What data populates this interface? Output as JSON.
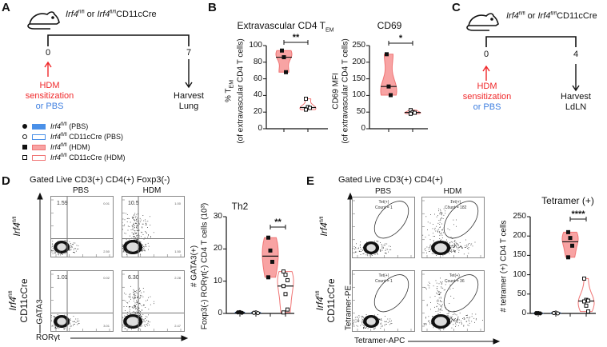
{
  "colors": {
    "hdm_red": "#f0282a",
    "pbs_blue": "#3f7fe0",
    "violin_pink": "#f8a3a3",
    "violin_stroke": "#f07575",
    "blue_fill": "#4a90e8"
  },
  "panelA": {
    "label": "A",
    "strain": {
      "g1": "Irf4",
      "s1": "fl/fl",
      "or": " or ",
      "g2": "Irf4",
      "s2": "fl/fl",
      "rest": "CD11cCre"
    },
    "day_start": "0",
    "day_end": "7",
    "treat1": "HDM",
    "treat2": "sensitization",
    "treat3": "or PBS",
    "harvest1": "Harvest",
    "harvest2": "Lung"
  },
  "panelB": {
    "label": "B"
  },
  "panelC": {
    "label": "C",
    "strain": {
      "g1": "Irf4",
      "s1": "fl/fl",
      "or": " or ",
      "g2": "Irf4",
      "s2": "fl/fl",
      "rest": "CD11cCre"
    },
    "day_start": "0",
    "day_end": "4",
    "treat1": "HDM",
    "treat2": "sensitization",
    "treat3": "or PBS",
    "harvest1": "Harvest",
    "harvest2": "LdLN"
  },
  "legend": [
    {
      "gene": "Irf4",
      "sup": "fl/fl",
      "rest": " (PBS)",
      "marker": "filled-circle",
      "swatch": "blue-filled"
    },
    {
      "gene": "Irf4",
      "sup": "fl/fl",
      "rest": " CD11cCre (PBS)",
      "marker": "open-circle",
      "swatch": "blue-open"
    },
    {
      "gene": "Irf4",
      "sup": "fl/fl",
      "rest": " (HDM)",
      "marker": "filled-square",
      "swatch": "red-filled"
    },
    {
      "gene": "Irf4",
      "sup": "fl/fl",
      "rest": " CD11cCre (HDM)",
      "marker": "open-square",
      "swatch": "red-open"
    }
  ],
  "panelD": {
    "label": "D",
    "title": "Gated Live CD3(+) CD4(+) Foxp3(-)",
    "col_labels": [
      "PBS",
      "HDM"
    ],
    "row1": {
      "gene": "Irf4",
      "sup": "fl/fl"
    },
    "row2": {
      "gene": "Irf4",
      "sup": "fl/fl",
      "rest": "CD11cCre"
    },
    "y_axis": "GATA3",
    "x_axis": "RORγt",
    "plots": [
      {
        "ul": "1.59",
        "ur": "0.01",
        "lr": "2.50",
        "ll": "95.9"
      },
      {
        "ul": "10.5",
        "ur": "1.00",
        "lr": "1.50",
        "ll": "86.9"
      },
      {
        "ul": "1.01",
        "ur": "0.02",
        "lr": "3.01",
        "ll": "95.1"
      },
      {
        "ul": "6.30",
        "ur": "2.28",
        "lr": "2.47",
        "ll": "88.9"
      }
    ]
  },
  "panelE": {
    "label": "E",
    "title": "Gated Live CD3(+) CD4(+)",
    "col_labels": [
      "PBS",
      "HDM"
    ],
    "row1": {
      "gene": "Irf4",
      "sup": "fl/fl"
    },
    "row2": {
      "gene": "Irf4",
      "sup": "fl/fl",
      "rest": "CD11cCre"
    },
    "y_axis": "Tetramer-PE",
    "x_axis": "Tetramer-APC",
    "plots": [
      {
        "gate": "Tet(+)",
        "count": "Count = 1"
      },
      {
        "gate": "Tet(+)",
        "count": "Count = 182"
      },
      {
        "gate": "Tet(+)",
        "count": "Count = 1"
      },
      {
        "gate": "Tet(+)",
        "count": "Count = 36"
      }
    ]
  },
  "chart_data": [
    {
      "id": "tem",
      "type": "violin",
      "title": "Extravascular CD4 T",
      "title_sub": "EM",
      "ylabel_1": "% T",
      "ylabel_1_sub": "EM",
      "ylabel_2": "(of extravascular CD4 T cells)",
      "ylim": [
        0,
        100
      ],
      "yticks": [
        0,
        20,
        40,
        60,
        80,
        100
      ],
      "groups": [
        {
          "name": "Irf4 fl/fl (HDM)",
          "marker": "filled-square",
          "filled": true,
          "values": [
            94,
            86,
            68
          ]
        },
        {
          "name": "Irf4 fl/fl CD11cCre (HDM)",
          "marker": "open-square",
          "filled": false,
          "values": [
            36,
            26,
            25,
            23
          ]
        }
      ],
      "significance": "**"
    },
    {
      "id": "cd69",
      "type": "violin",
      "title": "CD69",
      "title_sub": "",
      "ylabel_1": "CD69 MFI",
      "ylabel_1_sub": "",
      "ylabel_2": "(of extravascular CD4 T cells)",
      "ylim": [
        0,
        250
      ],
      "yticks": [
        0,
        50,
        100,
        150,
        200,
        250
      ],
      "groups": [
        {
          "name": "Irf4 fl/fl (HDM)",
          "marker": "filled-square",
          "filled": true,
          "values": [
            224,
            127,
            101
          ]
        },
        {
          "name": "Irf4 fl/fl CD11cCre (HDM)",
          "marker": "open-square",
          "filled": false,
          "values": [
            56,
            50,
            48,
            45
          ]
        }
      ],
      "significance": "*"
    },
    {
      "id": "th2",
      "type": "violin",
      "title": "Th2",
      "title_sub": "",
      "ylabel_1": "# GATA3(+)",
      "ylabel_1_sub": "",
      "ylabel_2": "Foxp3(-) RORγt(-) CD4 T cells (10³)",
      "ylim": [
        0,
        30
      ],
      "yticks": [
        0,
        10,
        20,
        30
      ],
      "groups": [
        {
          "name": "Irf4 fl/fl (PBS)",
          "marker": "filled-circle",
          "filled": true,
          "color": "blue",
          "values": [
            0.3,
            0.4,
            0.2,
            0.3
          ]
        },
        {
          "name": "Irf4 fl/fl CD11cCre (PBS)",
          "marker": "open-circle",
          "filled": false,
          "color": "blue",
          "values": [
            0.2,
            0.3,
            0.1,
            0.2
          ]
        },
        {
          "name": "Irf4 fl/fl (HDM)",
          "marker": "filled-square",
          "filled": true,
          "values": [
            23.5,
            19.5,
            16,
            11.2
          ]
        },
        {
          "name": "Irf4 fl/fl CD11cCre (HDM)",
          "marker": "open-square",
          "filled": false,
          "values": [
            13,
            12,
            10.3,
            8.5,
            6,
            1.2,
            0.3
          ]
        }
      ],
      "significance": "**"
    },
    {
      "id": "tet",
      "type": "violin",
      "title": "Tetramer (+)",
      "title_sub": "",
      "ylabel_1": "# tetramer (+) CD4 T cells",
      "ylabel_1_sub": "",
      "ylabel_2": "",
      "ylim": [
        0,
        250
      ],
      "yticks": [
        0,
        50,
        100,
        150,
        200,
        250
      ],
      "groups": [
        {
          "name": "Irf4 fl/fl (PBS)",
          "marker": "filled-circle",
          "filled": true,
          "color": "blue",
          "values": [
            0,
            1,
            0,
            1
          ]
        },
        {
          "name": "Irf4 fl/fl CD11cCre (PBS)",
          "marker": "open-circle",
          "filled": false,
          "color": "blue",
          "values": [
            1,
            2,
            0,
            1
          ]
        },
        {
          "name": "Irf4 fl/fl (HDM)",
          "marker": "filled-square",
          "filled": true,
          "values": [
            210,
            195,
            175,
            145
          ]
        },
        {
          "name": "Irf4 fl/fl CD11cCre (HDM)",
          "marker": "open-square",
          "filled": false,
          "values": [
            90,
            35,
            33,
            31,
            20,
            5
          ]
        }
      ],
      "significance": "****"
    }
  ]
}
